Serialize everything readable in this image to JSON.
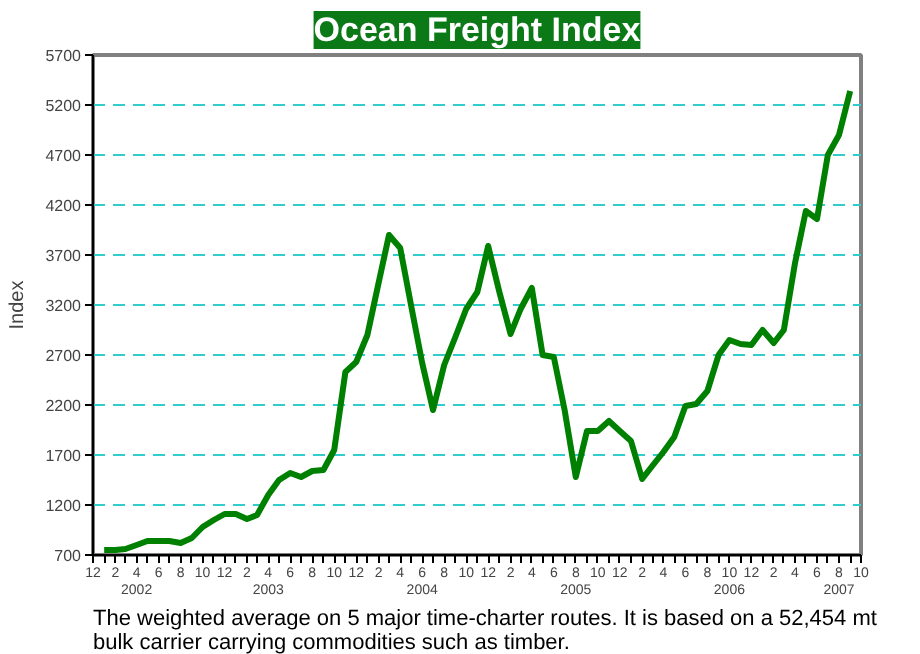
{
  "chart_data": {
    "type": "line",
    "title": "Ocean Freight Index",
    "ylabel": "Index",
    "x": [
      "2002-01",
      "2002-02",
      "2002-03",
      "2002-04",
      "2002-05",
      "2002-06",
      "2002-07",
      "2002-08",
      "2002-09",
      "2002-10",
      "2002-11",
      "2002-12",
      "2003-01",
      "2003-02",
      "2003-03",
      "2003-04",
      "2003-05",
      "2003-06",
      "2003-07",
      "2003-08",
      "2003-09",
      "2003-10",
      "2003-11",
      "2003-12",
      "2004-01",
      "2004-02",
      "2004-03",
      "2004-04",
      "2004-05",
      "2004-06",
      "2004-07",
      "2004-08",
      "2004-09",
      "2004-10",
      "2004-11",
      "2004-12",
      "2005-01",
      "2005-02",
      "2005-03",
      "2005-04",
      "2005-05",
      "2005-06",
      "2005-07",
      "2005-08",
      "2005-09",
      "2005-10",
      "2005-11",
      "2005-12",
      "2006-01",
      "2006-02",
      "2006-03",
      "2006-04",
      "2006-05",
      "2006-06",
      "2006-07",
      "2006-08",
      "2006-09",
      "2006-10",
      "2006-11",
      "2006-12",
      "2007-01",
      "2007-02",
      "2007-03",
      "2007-04",
      "2007-05",
      "2007-06",
      "2007-07",
      "2007-08",
      "2007-09"
    ],
    "series": [
      {
        "color": "#008000",
        "values": [
          750,
          750,
          760,
          800,
          840,
          840,
          840,
          820,
          870,
          980,
          1050,
          1110,
          1110,
          1060,
          1100,
          1300,
          1450,
          1520,
          1480,
          1540,
          1550,
          1750,
          2530,
          2630,
          2900,
          3420,
          3900,
          3770,
          3200,
          2620,
          2150,
          2600,
          2880,
          3160,
          3330,
          3790,
          3330,
          2910,
          3160,
          3370,
          2700,
          2680,
          2150,
          1480,
          1940,
          1940,
          2040,
          1940,
          1840,
          1460,
          1590,
          1730,
          1880,
          2190,
          2210,
          2340,
          2700,
          2850,
          2810,
          2800,
          2950,
          2820,
          2950,
          3620,
          4140,
          4060,
          4700,
          4900,
          5340
        ]
      }
    ],
    "xlim": [
      "2001-12",
      "2007-10"
    ],
    "xticks": [
      {
        "value": "2001-12",
        "label": "12"
      },
      {
        "value": "2002-01",
        "label": null
      },
      {
        "value": "2002-02",
        "label": "2"
      },
      {
        "value": "2002-03",
        "label": null
      },
      {
        "value": "2002-04",
        "label": "4\n2002"
      },
      {
        "value": "2002-05",
        "label": null
      },
      {
        "value": "2002-06",
        "label": "6"
      },
      {
        "value": "2002-07",
        "label": null
      },
      {
        "value": "2002-08",
        "label": "8"
      },
      {
        "value": "2002-09",
        "label": null
      },
      {
        "value": "2002-10",
        "label": "10"
      },
      {
        "value": "2002-11",
        "label": null
      },
      {
        "value": "2002-12",
        "label": "12"
      },
      {
        "value": "2003-01",
        "label": null
      },
      {
        "value": "2003-02",
        "label": "2"
      },
      {
        "value": "2003-03",
        "label": null
      },
      {
        "value": "2003-04",
        "label": "4\n2003"
      },
      {
        "value": "2003-05",
        "label": null
      },
      {
        "value": "2003-06",
        "label": "6"
      },
      {
        "value": "2003-07",
        "label": null
      },
      {
        "value": "2003-08",
        "label": "8"
      },
      {
        "value": "2003-09",
        "label": null
      },
      {
        "value": "2003-10",
        "label": "10"
      },
      {
        "value": "2003-11",
        "label": null
      },
      {
        "value": "2003-12",
        "label": "12"
      },
      {
        "value": "2004-01",
        "label": null
      },
      {
        "value": "2004-02",
        "label": "2"
      },
      {
        "value": "2004-03",
        "label": null
      },
      {
        "value": "2004-04",
        "label": "4"
      },
      {
        "value": "2004-05",
        "label": null
      },
      {
        "value": "2004-06",
        "label": "6\n2004"
      },
      {
        "value": "2004-07",
        "label": null
      },
      {
        "value": "2004-08",
        "label": "8"
      },
      {
        "value": "2004-09",
        "label": null
      },
      {
        "value": "2004-10",
        "label": "10"
      },
      {
        "value": "2004-11",
        "label": null
      },
      {
        "value": "2004-12",
        "label": "12"
      },
      {
        "value": "2005-01",
        "label": null
      },
      {
        "value": "2005-02",
        "label": "2"
      },
      {
        "value": "2005-03",
        "label": null
      },
      {
        "value": "2005-04",
        "label": "4"
      },
      {
        "value": "2005-05",
        "label": null
      },
      {
        "value": "2005-06",
        "label": "6"
      },
      {
        "value": "2005-07",
        "label": null
      },
      {
        "value": "2005-08",
        "label": "8\n2005"
      },
      {
        "value": "2005-09",
        "label": null
      },
      {
        "value": "2005-10",
        "label": "10"
      },
      {
        "value": "2005-11",
        "label": null
      },
      {
        "value": "2005-12",
        "label": "12"
      },
      {
        "value": "2006-01",
        "label": null
      },
      {
        "value": "2006-02",
        "label": "2"
      },
      {
        "value": "2006-03",
        "label": null
      },
      {
        "value": "2006-04",
        "label": "4"
      },
      {
        "value": "2006-05",
        "label": null
      },
      {
        "value": "2006-06",
        "label": "6"
      },
      {
        "value": "2006-07",
        "label": null
      },
      {
        "value": "2006-08",
        "label": "8"
      },
      {
        "value": "2006-09",
        "label": null
      },
      {
        "value": "2006-10",
        "label": "10\n2006"
      },
      {
        "value": "2006-11",
        "label": null
      },
      {
        "value": "2006-12",
        "label": "12"
      },
      {
        "value": "2007-01",
        "label": null
      },
      {
        "value": "2007-02",
        "label": "2"
      },
      {
        "value": "2007-03",
        "label": null
      },
      {
        "value": "2007-04",
        "label": "4"
      },
      {
        "value": "2007-05",
        "label": null
      },
      {
        "value": "2007-06",
        "label": "6"
      },
      {
        "value": "2007-07",
        "label": null
      },
      {
        "value": "2007-08",
        "label": "8\n2007"
      },
      {
        "value": "2007-09",
        "label": null
      },
      {
        "value": "2007-10",
        "label": "10"
      }
    ],
    "ylim": [
      700,
      5700
    ],
    "yticks": [
      700,
      1200,
      1700,
      2200,
      2700,
      3200,
      3700,
      4200,
      4700,
      5200,
      5700
    ],
    "grid": "y",
    "marker": "none",
    "line_style": "solid",
    "annotations": [
      "The weighted average on 5 major time-charter routes. It is based on a 52,454 mt\nbulk carrier carrying commodities such as timber."
    ]
  }
}
